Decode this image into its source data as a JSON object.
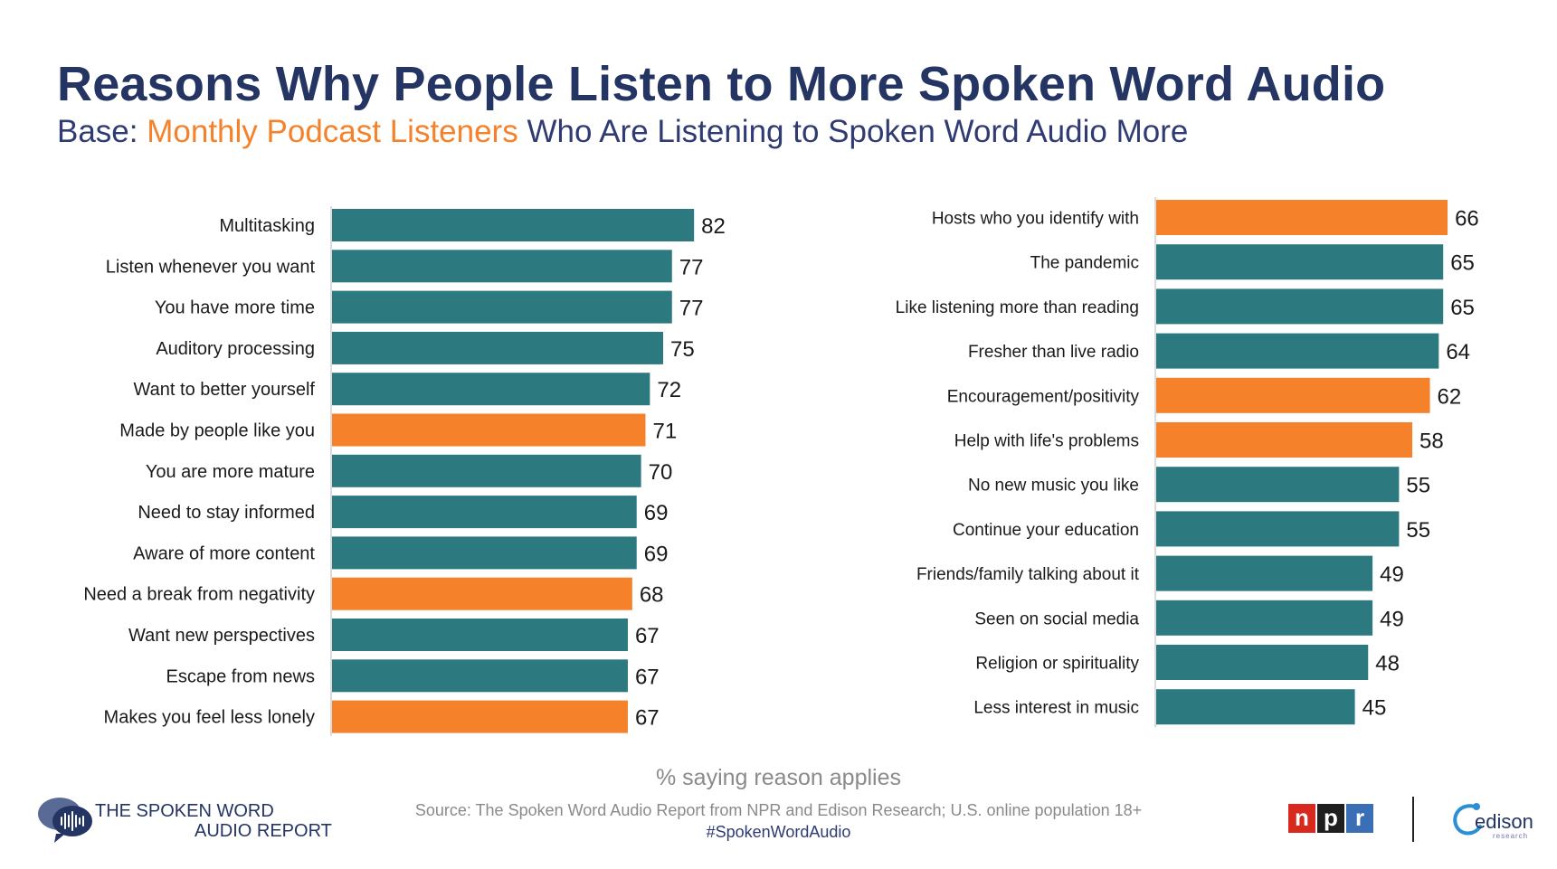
{
  "header": {
    "title": "Reasons Why People Listen to More Spoken Word Audio",
    "subtitle_prefix": "Base: ",
    "subtitle_highlight": "Monthly Podcast Listeners",
    "subtitle_suffix": " Who Are Listening to Spoken Word Audio More"
  },
  "colors": {
    "teal": "#2c7a80",
    "orange": "#f5822a",
    "title": "#243463"
  },
  "chart_data": [
    {
      "type": "bar",
      "orientation": "horizontal",
      "categories": [
        "Multitasking",
        "Listen whenever you want",
        "You have more time",
        "Auditory processing",
        "Want to better yourself",
        "Made by people like you",
        "You are more mature",
        "Need to stay informed",
        "Aware of more content",
        "Need a break from negativity",
        "Want new perspectives",
        "Escape from news",
        "Makes you feel less lonely"
      ],
      "values": [
        82,
        77,
        77,
        75,
        72,
        71,
        70,
        69,
        69,
        68,
        67,
        67,
        67
      ],
      "highlight": [
        false,
        false,
        false,
        false,
        false,
        true,
        false,
        false,
        false,
        true,
        false,
        false,
        true
      ],
      "xlim": [
        0,
        100
      ]
    },
    {
      "type": "bar",
      "orientation": "horizontal",
      "categories": [
        "Hosts who you identify with",
        "The pandemic",
        "Like listening more than reading",
        "Fresher than live radio",
        "Encouragement/positivity",
        "Help with life's problems",
        "No new music you like",
        "Continue your education",
        "Friends/family talking about it",
        "Seen on social media",
        "Religion or spirituality",
        "Less interest in music"
      ],
      "values": [
        66,
        65,
        65,
        64,
        62,
        58,
        55,
        55,
        49,
        49,
        48,
        45
      ],
      "highlight": [
        true,
        false,
        false,
        false,
        true,
        true,
        false,
        false,
        false,
        false,
        false,
        false
      ],
      "xlim": [
        0,
        100
      ]
    }
  ],
  "footer": {
    "axis_caption": "% saying reason applies",
    "source": "Source: The Spoken Word Audio Report from NPR and Edison Research; U.S. online population 18+",
    "hashtag": "#SpokenWordAudio",
    "brand_line1": "THE SPOKEN WORD",
    "brand_line2": "AUDIO REPORT",
    "npr_letters": [
      "n",
      "p",
      "r"
    ],
    "npr_colors": [
      "#d9281e",
      "#1f1f1f",
      "#3a6fb5"
    ],
    "edison_word": "edison",
    "edison_sub": "research"
  }
}
